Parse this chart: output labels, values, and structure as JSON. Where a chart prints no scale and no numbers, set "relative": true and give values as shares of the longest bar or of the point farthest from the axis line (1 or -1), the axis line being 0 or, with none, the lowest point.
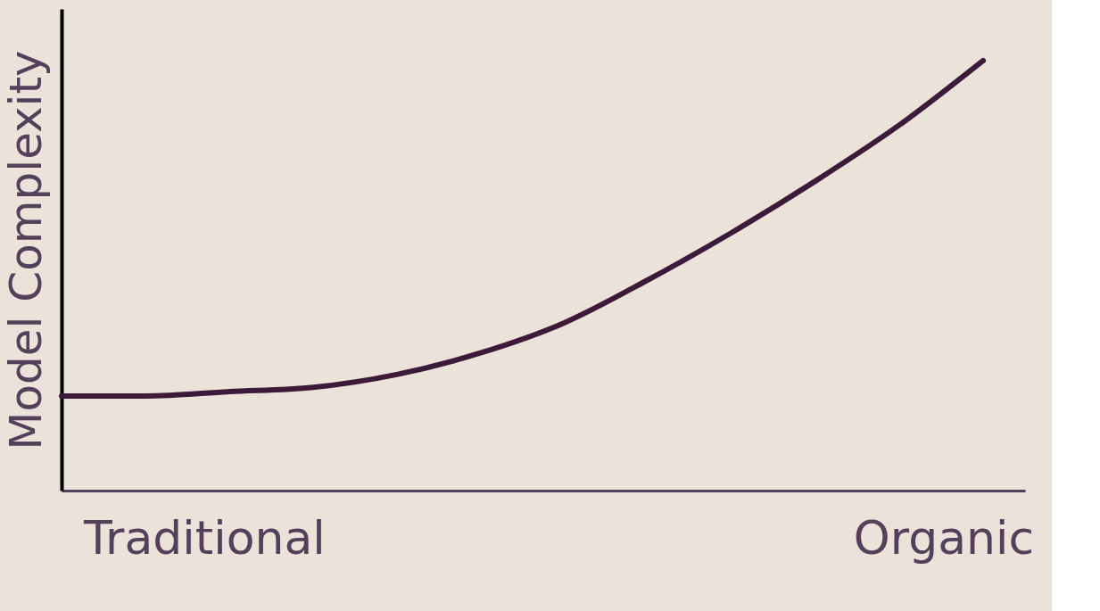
{
  "chart_data": {
    "type": "line",
    "relative": true,
    "ylabel": "Model Complexity",
    "tick_labels": false,
    "grid": false,
    "marker": "none",
    "line_style": "solid",
    "categories": [
      null,
      null,
      null,
      null,
      null,
      null,
      null,
      null,
      null,
      null,
      null,
      null
    ],
    "series": [
      {
        "color": "#3d1a3a",
        "values": [
          0.22,
          0.22,
          0.23,
          0.24,
          0.27,
          0.32,
          0.39,
          0.49,
          0.6,
          0.72,
          0.85,
          1.0
        ]
      }
    ],
    "annotations": [
      "Traditional",
      "Organic"
    ]
  }
}
